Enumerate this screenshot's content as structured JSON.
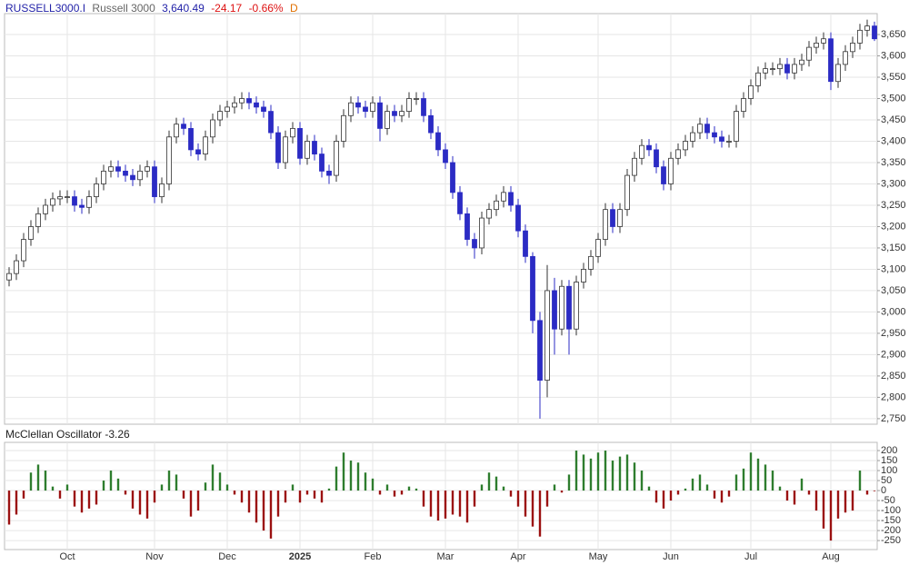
{
  "header": {
    "symbol": "RUSSELL3000.I",
    "name": "Russell 3000",
    "last": "3,640.49",
    "change": "-24.17",
    "change_pct": "-0.66%",
    "period": "D"
  },
  "chart_data": [
    {
      "type": "candlestick",
      "categories": [
        null,
        null,
        null,
        null,
        null,
        null,
        null,
        null,
        "Oct",
        null,
        null,
        null,
        null,
        null,
        null,
        null,
        null,
        null,
        null,
        null,
        "Nov",
        null,
        null,
        null,
        null,
        null,
        null,
        null,
        null,
        null,
        "Dec",
        null,
        null,
        null,
        null,
        null,
        null,
        null,
        null,
        null,
        "2025",
        null,
        null,
        null,
        null,
        null,
        null,
        null,
        null,
        null,
        "Feb",
        null,
        null,
        null,
        null,
        null,
        null,
        null,
        null,
        null,
        "Mar",
        null,
        null,
        null,
        null,
        null,
        null,
        null,
        null,
        null,
        "Apr",
        null,
        null,
        null,
        null,
        null,
        null,
        null,
        null,
        null,
        null,
        "May",
        null,
        null,
        null,
        null,
        null,
        null,
        null,
        null,
        null,
        "Jun",
        null,
        null,
        null,
        null,
        null,
        null,
        null,
        null,
        null,
        null,
        "Jul",
        null,
        null,
        null,
        null,
        null,
        null,
        null,
        null,
        null,
        null,
        "Aug",
        null,
        null,
        null,
        null,
        null,
        null
      ],
      "open": [
        3075,
        3090,
        3120,
        3170,
        3200,
        3230,
        3250,
        3265,
        3270,
        3270,
        3250,
        3245,
        3270,
        3300,
        3330,
        3340,
        3330,
        3320,
        3310,
        3330,
        3340,
        3270,
        3300,
        3410,
        3440,
        3430,
        3380,
        3370,
        3410,
        3450,
        3470,
        3480,
        3490,
        3500,
        3490,
        3480,
        3470,
        3420,
        3350,
        3410,
        3430,
        3360,
        3400,
        3370,
        3330,
        3320,
        3400,
        3460,
        3490,
        3480,
        3470,
        3490,
        3430,
        3470,
        3460,
        3470,
        3500,
        3500,
        3460,
        3420,
        3380,
        3350,
        3280,
        3230,
        3170,
        3150,
        3220,
        3240,
        3260,
        3280,
        3250,
        3190,
        3130,
        2980,
        2840,
        3050,
        2960,
        3060,
        2960,
        3070,
        3100,
        3130,
        3170,
        3240,
        3200,
        3240,
        3320,
        3360,
        3390,
        3380,
        3340,
        3300,
        3360,
        3380,
        3400,
        3420,
        3440,
        3420,
        3410,
        3400,
        3400,
        3470,
        3500,
        3530,
        3560,
        3570,
        3570,
        3580,
        3560,
        3580,
        3590,
        3620,
        3630,
        3640,
        3540,
        3580,
        3610,
        3630,
        3660,
        3670
      ],
      "high": [
        3105,
        3135,
        3185,
        3215,
        3245,
        3265,
        3280,
        3285,
        3285,
        3285,
        3265,
        3285,
        3315,
        3345,
        3355,
        3355,
        3345,
        3335,
        3345,
        3355,
        3355,
        3315,
        3425,
        3455,
        3455,
        3445,
        3395,
        3425,
        3465,
        3485,
        3495,
        3505,
        3515,
        3515,
        3505,
        3495,
        3485,
        3435,
        3425,
        3445,
        3445,
        3415,
        3415,
        3385,
        3345,
        3415,
        3475,
        3505,
        3505,
        3495,
        3505,
        3505,
        3485,
        3485,
        3485,
        3515,
        3515,
        3515,
        3475,
        3435,
        3395,
        3365,
        3295,
        3245,
        3185,
        3235,
        3255,
        3275,
        3295,
        3295,
        3265,
        3205,
        3140,
        3000,
        3110,
        3080,
        3075,
        3075,
        3085,
        3115,
        3145,
        3185,
        3255,
        3255,
        3255,
        3335,
        3375,
        3405,
        3405,
        3395,
        3355,
        3375,
        3395,
        3415,
        3435,
        3455,
        3455,
        3435,
        3425,
        3415,
        3485,
        3515,
        3545,
        3575,
        3585,
        3585,
        3595,
        3595,
        3595,
        3605,
        3635,
        3645,
        3655,
        3655,
        3595,
        3625,
        3645,
        3675,
        3685,
        3680
      ],
      "low": [
        3060,
        3075,
        3105,
        3155,
        3185,
        3215,
        3235,
        3250,
        3255,
        3235,
        3230,
        3230,
        3255,
        3285,
        3315,
        3315,
        3305,
        3295,
        3295,
        3315,
        3255,
        3255,
        3285,
        3395,
        3415,
        3365,
        3355,
        3355,
        3395,
        3435,
        3455,
        3465,
        3475,
        3475,
        3465,
        3455,
        3405,
        3335,
        3335,
        3395,
        3345,
        3345,
        3355,
        3315,
        3300,
        3305,
        3385,
        3445,
        3465,
        3455,
        3455,
        3400,
        3415,
        3445,
        3445,
        3455,
        3485,
        3445,
        3405,
        3365,
        3335,
        3265,
        3215,
        3155,
        3125,
        3135,
        3205,
        3225,
        3245,
        3235,
        3175,
        3115,
        2950,
        2750,
        2800,
        2900,
        2945,
        2900,
        2945,
        3055,
        3085,
        3115,
        3155,
        3185,
        3185,
        3225,
        3305,
        3345,
        3365,
        3325,
        3285,
        3285,
        3345,
        3365,
        3385,
        3405,
        3405,
        3395,
        3385,
        3385,
        3385,
        3455,
        3485,
        3515,
        3545,
        3555,
        3555,
        3545,
        3545,
        3565,
        3575,
        3605,
        3615,
        3520,
        3525,
        3565,
        3595,
        3615,
        3645,
        3635
      ],
      "close": [
        3090,
        3120,
        3170,
        3200,
        3230,
        3250,
        3265,
        3270,
        3270,
        3250,
        3245,
        3270,
        3300,
        3330,
        3340,
        3330,
        3320,
        3310,
        3330,
        3340,
        3270,
        3300,
        3410,
        3440,
        3430,
        3380,
        3370,
        3410,
        3450,
        3470,
        3480,
        3490,
        3500,
        3490,
        3480,
        3470,
        3420,
        3350,
        3410,
        3430,
        3360,
        3400,
        3370,
        3330,
        3320,
        3400,
        3460,
        3490,
        3480,
        3470,
        3490,
        3430,
        3470,
        3460,
        3470,
        3500,
        3500,
        3460,
        3420,
        3380,
        3350,
        3280,
        3230,
        3170,
        3150,
        3220,
        3240,
        3260,
        3280,
        3250,
        3190,
        3130,
        2980,
        2840,
        3050,
        2960,
        3060,
        2960,
        3070,
        3100,
        3130,
        3170,
        3240,
        3200,
        3240,
        3320,
        3360,
        3390,
        3380,
        3340,
        3300,
        3360,
        3380,
        3400,
        3420,
        3440,
        3420,
        3410,
        3400,
        3400,
        3470,
        3500,
        3530,
        3560,
        3570,
        3570,
        3580,
        3560,
        3580,
        3590,
        3620,
        3630,
        3640,
        3540,
        3580,
        3610,
        3630,
        3660,
        3670,
        3640
      ],
      "up_color": "#ffffff",
      "down_color": "#2b2bc4",
      "edge_color": "#333333",
      "ylim": [
        2737,
        3699
      ],
      "yticks": [
        {
          "value": 2750,
          "label": "2,750"
        },
        {
          "value": 2800,
          "label": "2,800"
        },
        {
          "value": 2850,
          "label": "2,850"
        },
        {
          "value": 2900,
          "label": "2,900"
        },
        {
          "value": 2950,
          "label": "2,950"
        },
        {
          "value": 3000,
          "label": "3,000"
        },
        {
          "value": 3050,
          "label": "3,050"
        },
        {
          "value": 3100,
          "label": "3,100"
        },
        {
          "value": 3150,
          "label": "3,150"
        },
        {
          "value": 3200,
          "label": "3,200"
        },
        {
          "value": 3250,
          "label": "3,250"
        },
        {
          "value": 3300,
          "label": "3,300"
        },
        {
          "value": 3350,
          "label": "3,350"
        },
        {
          "value": 3400,
          "label": "3,400"
        },
        {
          "value": 3450,
          "label": "3,450"
        },
        {
          "value": 3500,
          "label": "3,500"
        },
        {
          "value": 3550,
          "label": "3,550"
        },
        {
          "value": 3600,
          "label": "3,600"
        },
        {
          "value": 3650,
          "label": "3,650"
        }
      ],
      "grid": true
    },
    {
      "type": "bar",
      "title": "McClellan Oscillator -3.26",
      "values": [
        -170,
        -120,
        -40,
        90,
        130,
        100,
        20,
        -40,
        30,
        -80,
        -110,
        -90,
        -70,
        50,
        100,
        60,
        -20,
        -90,
        -120,
        -140,
        -60,
        30,
        100,
        80,
        -40,
        -130,
        -100,
        40,
        130,
        90,
        30,
        -20,
        -60,
        -110,
        -160,
        -200,
        -240,
        -130,
        -60,
        30,
        -60,
        -20,
        -40,
        -60,
        10,
        120,
        190,
        150,
        140,
        90,
        60,
        -20,
        30,
        -30,
        -20,
        20,
        10,
        -80,
        -130,
        -150,
        -140,
        -120,
        -130,
        -160,
        -80,
        30,
        90,
        70,
        20,
        -30,
        -80,
        -130,
        -180,
        -230,
        -80,
        30,
        -10,
        80,
        200,
        180,
        160,
        190,
        200,
        150,
        170,
        180,
        140,
        100,
        20,
        -60,
        -90,
        -50,
        -20,
        10,
        60,
        80,
        30,
        -40,
        -60,
        -30,
        80,
        110,
        190,
        160,
        130,
        100,
        20,
        -50,
        -70,
        60,
        -20,
        -100,
        -190,
        -250,
        -140,
        -110,
        -100,
        100,
        -20,
        -3.26
      ],
      "positive_color": "#2e7d2e",
      "negative_color": "#9b1111",
      "ylim": [
        -295,
        241
      ],
      "yticks": [
        200,
        150,
        100,
        50,
        0,
        -50,
        -100,
        -150,
        -200,
        -250
      ],
      "grid": true
    }
  ]
}
